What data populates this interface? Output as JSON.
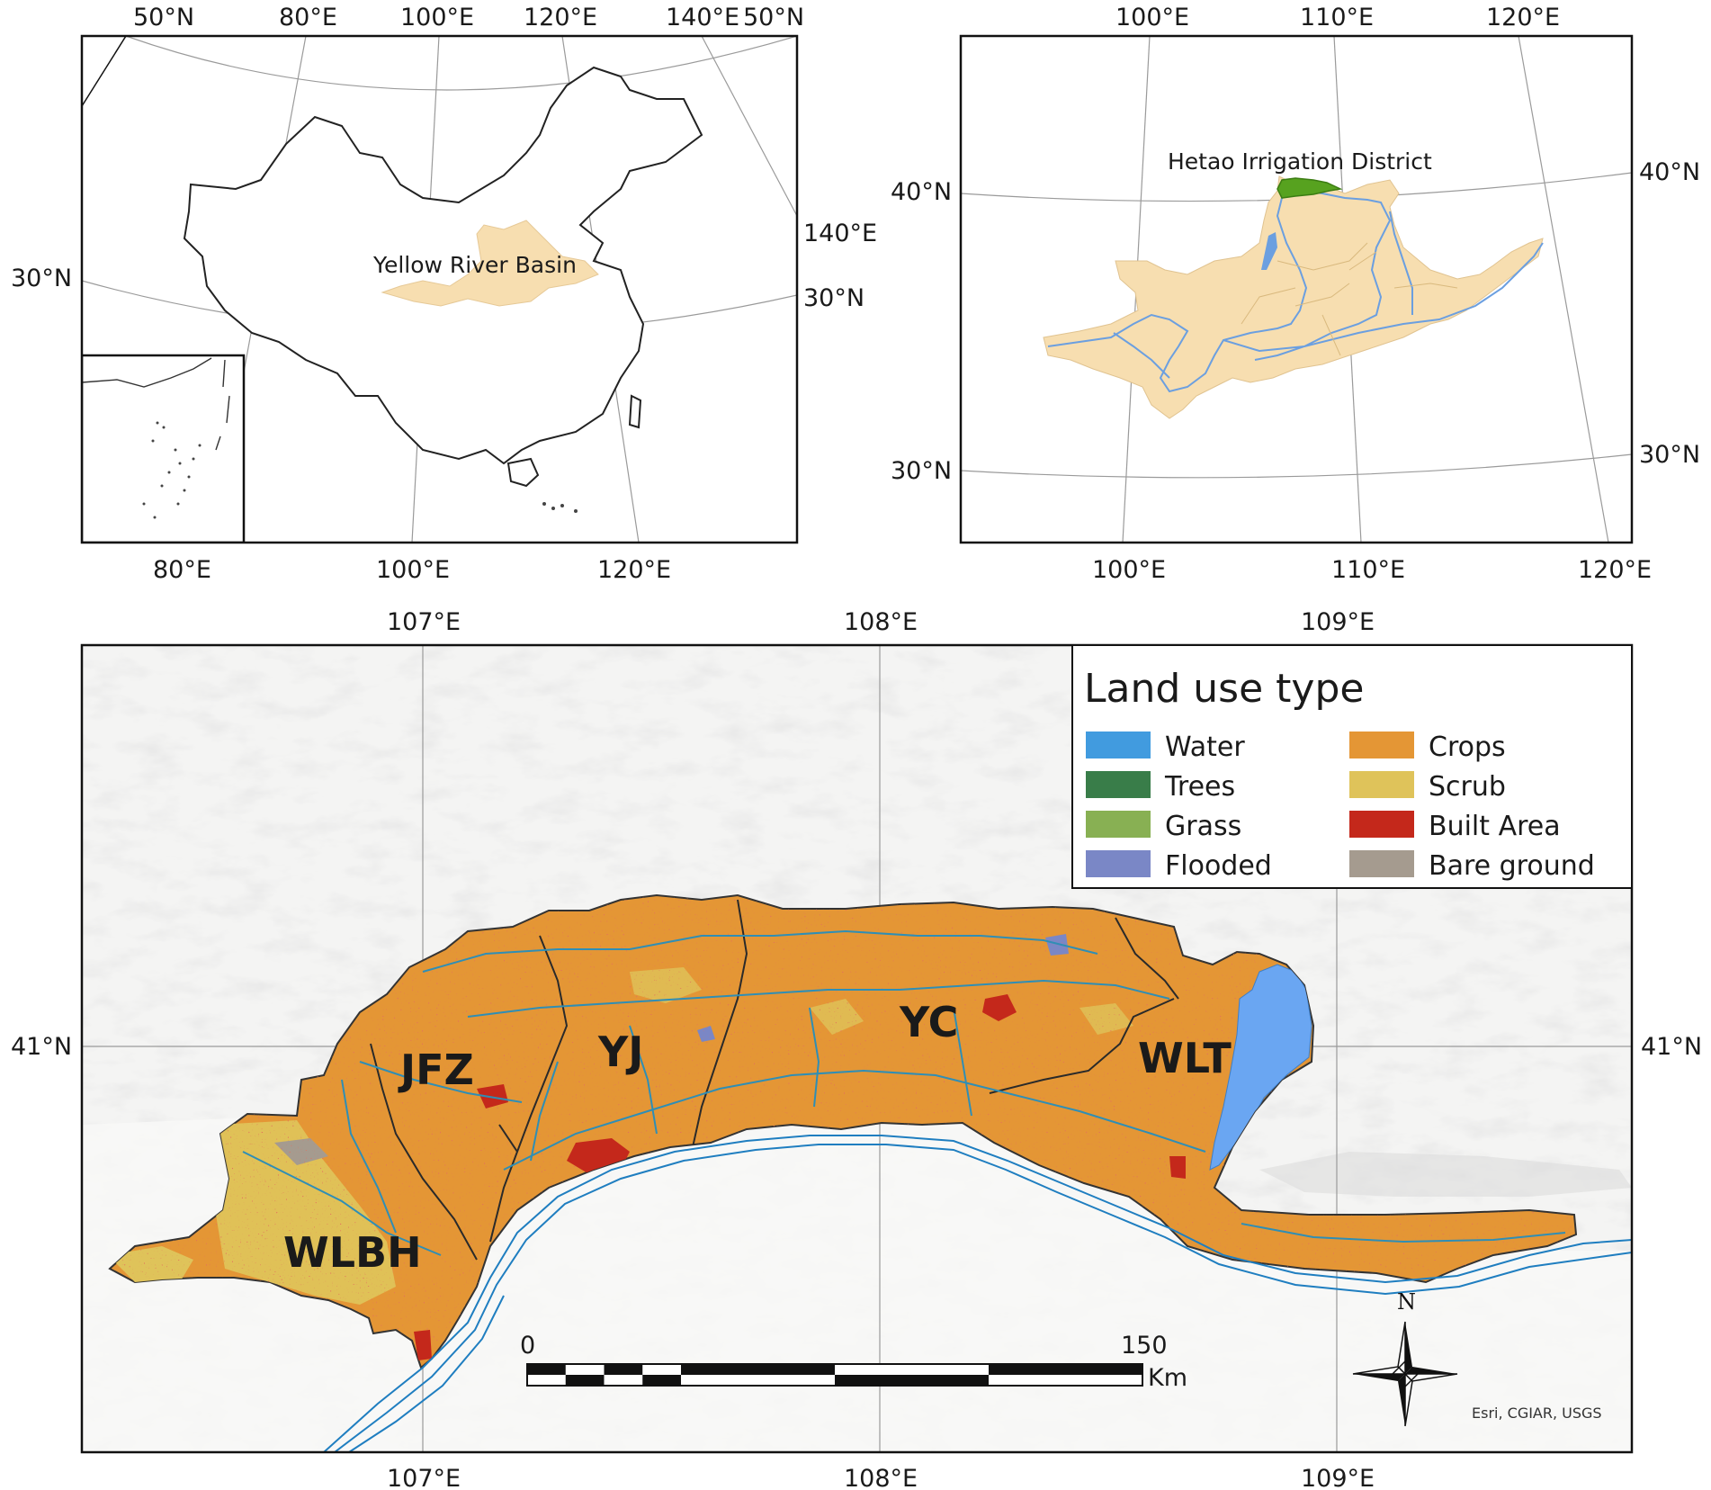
{
  "panel_a": {
    "lon_top": [
      "50°N",
      "80°E",
      "100°E",
      "120°E",
      "140°E",
      "50°N"
    ],
    "lon_bottom": [
      "80°E",
      "100°E",
      "120°E"
    ],
    "lat_left": [
      "30°N"
    ],
    "lat_right": [
      "140°E",
      "30°N"
    ],
    "basin_label": "Yellow River Basin"
  },
  "panel_b": {
    "lon_top": [
      "100°E",
      "110°E",
      "120°E"
    ],
    "lon_bottom": [
      "100°E",
      "110°E",
      "120°E"
    ],
    "lat_left": [
      "40°N",
      "30°N"
    ],
    "lat_right": [
      "40°N",
      "30°N"
    ],
    "district_label": "Hetao Irrigation District"
  },
  "panel_c": {
    "lon_top": [
      "107°E",
      "108°E",
      "109°E"
    ],
    "lon_bottom": [
      "107°E",
      "108°E",
      "109°E"
    ],
    "lat_left": "41°N",
    "lat_right": "41°N",
    "regions": [
      "WLBH",
      "JFZ",
      "YJ",
      "YC",
      "WLT"
    ],
    "scale": {
      "start": "0",
      "end": "150",
      "unit": "Km"
    },
    "north": "N",
    "credits": "Esri, CGIAR, USGS"
  },
  "legend": {
    "title": "Land use type",
    "items": [
      {
        "label": "Water",
        "color": "#419BDF"
      },
      {
        "label": "Trees",
        "color": "#397D49"
      },
      {
        "label": "Grass",
        "color": "#88B053"
      },
      {
        "label": "Flooded",
        "color": "#7A87C6"
      },
      {
        "label": "Crops",
        "color": "#E49635"
      },
      {
        "label": "Scrub",
        "color": "#DFC35A"
      },
      {
        "label": "Built Area",
        "color": "#C4281B"
      },
      {
        "label": "Bare ground",
        "color": "#A59B8F"
      }
    ]
  }
}
